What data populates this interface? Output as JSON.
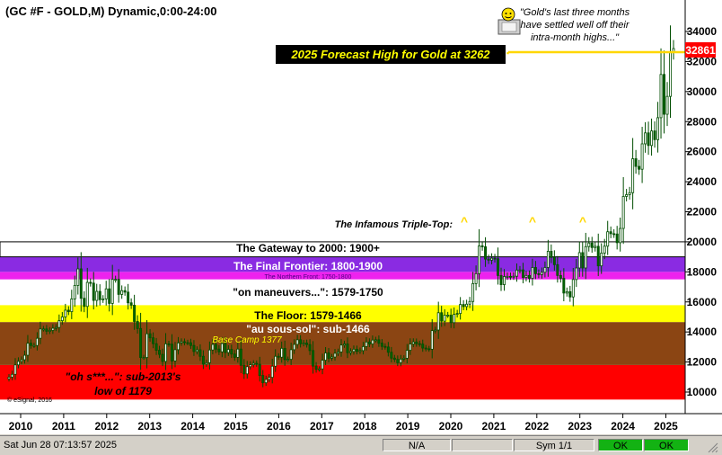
{
  "header": {
    "title": "(GC #F - GOLD,M) Dynamic,0:00-24:00"
  },
  "colors": {
    "background": "#ffffff",
    "red": "#ff0000",
    "brown": "#8b4513",
    "yellow": "#ffff00",
    "magenta": "#ee22ee",
    "purple": "#8a2be2",
    "candle": "#006400",
    "forecast_line": "#ffd700",
    "price_tag": "#ff0000"
  },
  "zones": [
    {
      "label": "\"oh s***...\":  sub-2013's",
      "label2": "low of 1179",
      "from": 9500,
      "to": 11800,
      "color": "#ff0000",
      "text_color": "#000000"
    },
    {
      "label": "\"au sous-sol\":  sub-1466",
      "from": 11800,
      "to": 14660,
      "color": "#8b4513",
      "text_color": "#ffffff"
    },
    {
      "label": "The Floor:  1579-1466",
      "from": 14660,
      "to": 15790,
      "color": "#ffff00",
      "text_color": "#000000"
    },
    {
      "label": "\"on maneuvers...\":  1579-1750",
      "from": 15790,
      "to": 17500,
      "color": "#ffffff",
      "text_color": "#000000"
    },
    {
      "label": "The Northern Front:  1750-1800",
      "from": 17500,
      "to": 18000,
      "color": "#ee22ee",
      "text_color": "#4b0082"
    },
    {
      "label": "The Final Frontier:  1800-1900",
      "from": 18000,
      "to": 19000,
      "color": "#8a2be2",
      "text_color": "#ffffff"
    },
    {
      "label": "The Gateway to 2000:  1900+",
      "from": 19000,
      "to": 20000,
      "color": "#ffffff",
      "text_color": "#000000"
    }
  ],
  "annotations": {
    "base_camp": "Base Camp 1377",
    "triple_top": "The Infamous Triple-Top:",
    "triple_top_mark": "^",
    "forecast": "2025 Forecast High for Gold at 3262",
    "quote_line1": "\"Gold's last three months",
    "quote_line2": "have settled well off their",
    "quote_line3": "intra-month highs...\"",
    "copyright": "© eSignal, 2016",
    "price_tag": "32861"
  },
  "chart_data": {
    "type": "candlestick",
    "title": "(GC #F - GOLD,M) Dynamic,0:00-24:00",
    "ylim": [
      9500,
      35000
    ],
    "y_ticks": [
      10000,
      12000,
      14000,
      16000,
      18000,
      20000,
      22000,
      24000,
      26000,
      28000,
      30000,
      32000,
      34000
    ],
    "x_labels": [
      "2010",
      "2011",
      "2012",
      "2013",
      "2014",
      "2015",
      "2016",
      "2017",
      "2018",
      "2019",
      "2020",
      "2021",
      "2022",
      "2023",
      "2024",
      "2025"
    ],
    "forecast_high": 32620,
    "last_price": 32861,
    "grid": false,
    "closes": [
      10990,
      11180,
      11810,
      12040,
      12150,
      12450,
      13250,
      13100,
      13100,
      13580,
      14200,
      14200,
      14050,
      14100,
      14250,
      14300,
      14750,
      15000,
      15450,
      15350,
      16200,
      17100,
      18200,
      16240,
      15700,
      17300,
      17250,
      16100,
      16700,
      16150,
      16200,
      16870,
      15900,
      17500,
      17500,
      16500,
      16750,
      16650,
      15940,
      15780,
      14700,
      14230,
      12300,
      12300,
      13880,
      13610,
      13220,
      12780,
      12510,
      12040,
      13210,
      13180,
      12070,
      12820,
      13270,
      13350,
      13290,
      13280,
      13100,
      12700,
      12810,
      12380,
      11860,
      11950,
      12800,
      13170,
      12860,
      12680,
      13230,
      12630,
      12840,
      12530,
      12310,
      12860,
      11780,
      11210,
      11690,
      11820,
      11910,
      11850,
      11100,
      10620,
      10840,
      10980,
      11720,
      12380,
      12320,
      12910,
      12160,
      12180,
      12820,
      13170,
      13480,
      13220,
      13260,
      13160,
      12760,
      11730,
      11510,
      11540,
      12120,
      12600,
      12250,
      12330,
      12580,
      12670,
      13130,
      13200,
      12620,
      12700,
      12850,
      12710,
      12760,
      13030,
      13330,
      13200,
      13460,
      13480,
      13250,
      13040,
      13000,
      12650,
      12260,
      12170,
      11950,
      12190,
      12250,
      12780,
      13200,
      13330,
      13220,
      13190,
      12930,
      12880,
      12850,
      14090,
      14130,
      15280,
      14720,
      15120,
      15120,
      14620,
      15170,
      15230,
      15830,
      15690,
      15850,
      16030,
      17220,
      17880,
      19730,
      19670,
      18850,
      18780,
      18910,
      18870,
      17760,
      17150,
      17690,
      17700,
      17690,
      17710,
      18120,
      18130,
      17630,
      17760,
      17570,
      18290,
      17880,
      17820,
      17970,
      18290,
      19370,
      18960,
      18480,
      17760,
      17570,
      16590,
      16680,
      16330,
      17490,
      18260,
      19280,
      18260,
      19680,
      19920,
      19620,
      19700,
      18400,
      19250,
      19710,
      20670,
      20540,
      20520,
      19940,
      20890,
      23020,
      23140,
      23270,
      25530,
      25020,
      24830,
      26520,
      27250,
      26410,
      27380,
      26800,
      28260,
      31140,
      28490,
      29680,
      32620,
      32861
    ]
  }
}
